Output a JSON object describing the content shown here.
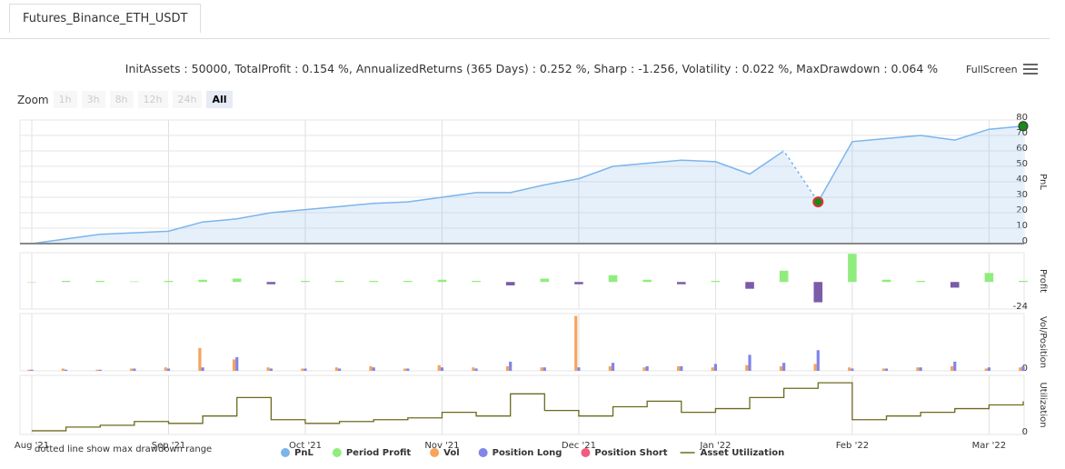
{
  "tab": "Futures_Binance_ETH_USDT",
  "stats": "InitAssets : 50000, TotalProfit : 0.154 %, AnnualizedReturns (365 Days) : 0.252 %, Sharp : -1.256, Volatility : 0.022 %, MaxDrawdown : 0.064 %",
  "fullscreen": "FullScreen",
  "zoom": {
    "label": "Zoom",
    "buttons": [
      "1h",
      "3h",
      "8h",
      "12h",
      "24h",
      "All"
    ]
  },
  "note": "dotted line show max drawdown range",
  "chart_data": [
    {
      "type": "line",
      "y_label": "PnL",
      "ylim": [
        0,
        80
      ],
      "yticks": [
        0,
        10,
        20,
        30,
        40,
        50,
        60,
        70,
        80
      ],
      "grid": true,
      "series": [
        {
          "name": "PnL",
          "color": "#7cb5ec",
          "values": [
            0,
            3,
            6,
            7,
            8,
            14,
            16,
            20,
            22,
            24,
            26,
            27,
            30,
            33,
            33,
            38,
            42,
            50,
            52,
            54,
            53,
            45,
            60,
            27,
            66,
            68,
            70,
            67,
            74,
            76
          ]
        }
      ]
    },
    {
      "type": "bar",
      "y_label": "Profit",
      "ylim": [
        -24,
        26
      ],
      "yticks": [
        -24
      ],
      "series": [
        {
          "name": "Period Profit",
          "color": "#90ed7d",
          "negative_color": "#7a5ca8",
          "values": [
            0,
            1,
            1,
            0.5,
            1,
            2,
            3,
            -2,
            1,
            1,
            1,
            1,
            2,
            1,
            -3,
            3,
            -2,
            6,
            2,
            -2,
            1,
            -6,
            10,
            -18,
            25,
            2,
            1,
            -5,
            8,
            1
          ]
        }
      ]
    },
    {
      "type": "bar",
      "y_label": "Vol/Position",
      "ylim": [
        0,
        50
      ],
      "yticks": [
        0
      ],
      "series": [
        {
          "name": "Vol",
          "color": "#f7a35c",
          "values": [
            1,
            2,
            1,
            2,
            3,
            20,
            10,
            3,
            2,
            3,
            4,
            2,
            5,
            3,
            4,
            3,
            48,
            4,
            3,
            4,
            3,
            5,
            4,
            6,
            3,
            2,
            3,
            4,
            2,
            3
          ]
        },
        {
          "name": "Position Long",
          "color": "#8085e9",
          "values": [
            1,
            1,
            1,
            2,
            2,
            3,
            12,
            2,
            2,
            2,
            3,
            2,
            3,
            2,
            8,
            3,
            3,
            7,
            4,
            4,
            6,
            14,
            7,
            18,
            2,
            2,
            3,
            8,
            3,
            4
          ]
        },
        {
          "name": "Position Short",
          "color": "#f15c80",
          "values": [
            null,
            null,
            null,
            null,
            null,
            null,
            null,
            null,
            null,
            null,
            null,
            null,
            null,
            null,
            null,
            null,
            null,
            null,
            null,
            null,
            null,
            null,
            null,
            null,
            null,
            null,
            null,
            null,
            null,
            null
          ]
        }
      ]
    },
    {
      "type": "step",
      "y_label": "Utilization",
      "ylim": [
        0,
        32
      ],
      "yticks": [
        0
      ],
      "categories": [
        "Aug '21",
        null,
        null,
        null,
        "Sep '21",
        null,
        null,
        null,
        "Oct '21",
        null,
        null,
        null,
        "Nov '21",
        null,
        null,
        null,
        "Dec '21",
        null,
        null,
        null,
        "Jan '22",
        null,
        null,
        null,
        "Feb '22",
        null,
        null,
        null,
        "Mar '22",
        null
      ],
      "series": [
        {
          "name": "Asset Utilization",
          "color": "#6b6b20",
          "values": [
            2,
            4,
            5,
            7,
            6,
            10,
            20,
            8,
            6,
            7,
            8,
            9,
            12,
            10,
            22,
            13,
            10,
            15,
            18,
            12,
            14,
            20,
            25,
            28,
            8,
            10,
            12,
            14,
            16,
            18
          ]
        }
      ]
    }
  ]
}
